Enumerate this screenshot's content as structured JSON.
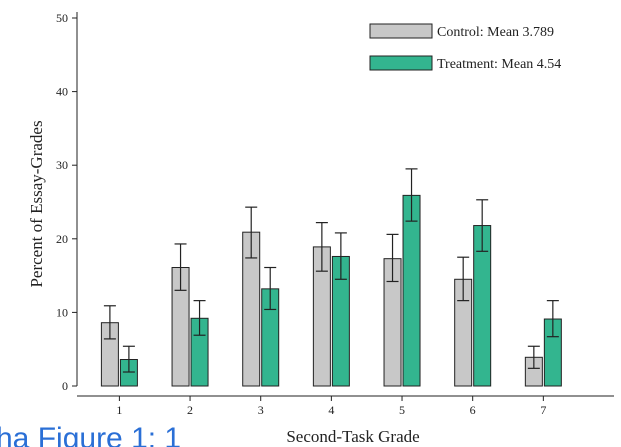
{
  "chart_data": {
    "type": "bar",
    "title": "",
    "xlabel": "Second-Task Grade",
    "ylabel": "Percent of Essay-Grades",
    "categories": [
      "1",
      "2",
      "3",
      "4",
      "5",
      "6",
      "7"
    ],
    "ylim": [
      0,
      50
    ],
    "yticks": [
      "0",
      "10",
      "20",
      "30",
      "40",
      "50"
    ],
    "grid": false,
    "legend_position": "top-right",
    "series": [
      {
        "name": "Control: Mean 3.789",
        "color": "#c8c8c8",
        "values": [
          8.6,
          16.1,
          20.9,
          18.9,
          17.3,
          14.5,
          3.9
        ],
        "error_low": [
          6.4,
          13.0,
          17.4,
          15.6,
          14.2,
          11.6,
          2.4
        ],
        "error_high": [
          10.9,
          19.3,
          24.3,
          22.2,
          20.6,
          17.5,
          5.4
        ]
      },
      {
        "name": "Treatment: Mean 4.54",
        "color": "#33b58f",
        "values": [
          3.6,
          9.2,
          13.2,
          17.6,
          25.9,
          21.8,
          9.1
        ],
        "error_low": [
          1.9,
          6.9,
          10.4,
          14.5,
          22.4,
          18.3,
          6.7
        ],
        "error_high": [
          5.4,
          11.6,
          16.1,
          20.8,
          29.5,
          25.3,
          11.6
        ]
      }
    ]
  },
  "overlay": {
    "partial_text": "ha Figure 1: 1"
  }
}
